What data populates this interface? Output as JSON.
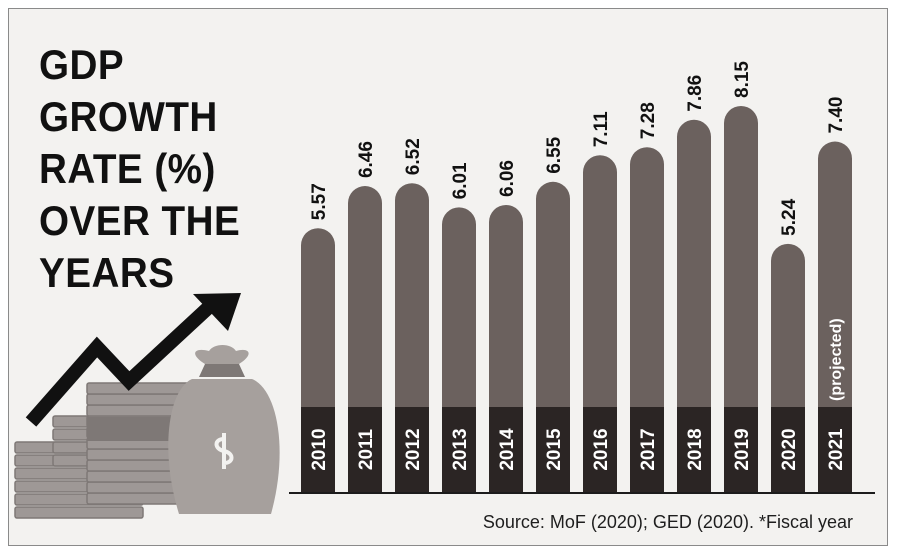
{
  "title_lines": [
    "GDP",
    "GROWTH",
    "RATE (%)",
    "OVER THE",
    "YEARS"
  ],
  "source": "Source: MoF (2020); GED (2020). *Fiscal year",
  "colors": {
    "background": "#f3f2f0",
    "bar": "#6b615e",
    "bar_base": "#2b2524",
    "axis": "#1c1c1c",
    "text": "#111111",
    "arrow": "#111111",
    "money": "#9e9896",
    "money_dark": "#7e7876",
    "bag": "#a6a09d"
  },
  "illustration_icons": [
    "growth-arrow-icon",
    "money-stack-icon",
    "money-bag-icon"
  ],
  "chart_data": {
    "type": "bar",
    "categories": [
      "2010",
      "2011",
      "2012",
      "2013",
      "2014",
      "2015",
      "2016",
      "2017",
      "2018",
      "2019",
      "2020",
      "2021"
    ],
    "values": [
      5.57,
      6.46,
      6.52,
      6.01,
      6.06,
      6.55,
      7.11,
      7.28,
      7.86,
      8.15,
      5.24,
      7.4
    ],
    "value_labels": [
      "5.57",
      "6.46",
      "6.52",
      "6.01",
      "6.06",
      "6.55",
      "7.11",
      "7.28",
      "7.86",
      "8.15",
      "5.24",
      "7.40"
    ],
    "annotations": [
      {
        "category": "2021",
        "text": "(projected)"
      }
    ],
    "title": "GDP GROWTH RATE (%) OVER THE YEARS",
    "xlabel": "",
    "ylabel": "",
    "ylim": [
      0,
      8.15
    ],
    "grid": false,
    "legend": "none"
  }
}
